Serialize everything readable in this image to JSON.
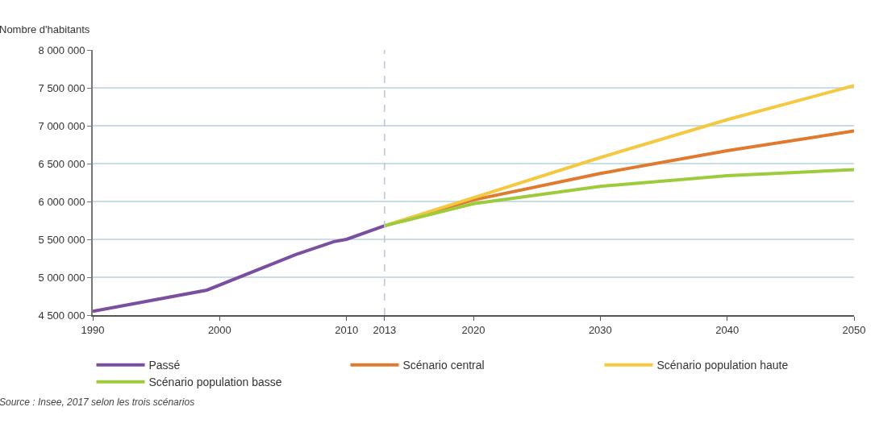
{
  "chart_data": {
    "type": "line",
    "ylabel": "Nombre d'habitants",
    "annotations": [
      "Source : Insee, 2017 selon les trois scénarios"
    ],
    "xlim": [
      1990,
      2050
    ],
    "xticks": [
      1990,
      2000,
      2010,
      2013,
      2020,
      2030,
      2040,
      2050
    ],
    "ylim": [
      4500000,
      8000000
    ],
    "yticks": [
      {
        "value": 4500000,
        "label": "4 500 000"
      },
      {
        "value": 5000000,
        "label": "5 000 000"
      },
      {
        "value": 5500000,
        "label": "5 500 000"
      },
      {
        "value": 6000000,
        "label": "6 000 000"
      },
      {
        "value": 6500000,
        "label": "6 500 000"
      },
      {
        "value": 7000000,
        "label": "7 000 000"
      },
      {
        "value": 7500000,
        "label": "7 500 000"
      },
      {
        "value": 8000000,
        "label": "8 000 000"
      }
    ],
    "grid": "y",
    "legend": "bottom",
    "line_style": "solid",
    "marker": "none",
    "ref_lines": [
      {
        "axis": "x",
        "value": 2013,
        "color": "#b8c4d8",
        "line_style": "dashed"
      }
    ],
    "series": [
      {
        "name": "Passé",
        "color": "#7b4fa0",
        "x": [
          1990,
          1999,
          2006,
          2009,
          2010,
          2013
        ],
        "values": [
          4550000,
          4830000,
          5300000,
          5470000,
          5500000,
          5680000
        ]
      },
      {
        "name": "Scénario central",
        "color": "#e07a2e",
        "x": [
          2013,
          2020,
          2030,
          2040,
          2050
        ],
        "values": [
          5680000,
          6020000,
          6370000,
          6670000,
          6930000
        ]
      },
      {
        "name": "Scénario population haute",
        "color": "#f5c842",
        "x": [
          2013,
          2020,
          2030,
          2040,
          2050
        ],
        "values": [
          5680000,
          6050000,
          6580000,
          7080000,
          7530000
        ]
      },
      {
        "name": "Scénario population basse",
        "color": "#9dcb3c",
        "x": [
          2013,
          2020,
          2030,
          2040,
          2050
        ],
        "values": [
          5680000,
          5970000,
          6200000,
          6340000,
          6420000
        ]
      }
    ]
  }
}
